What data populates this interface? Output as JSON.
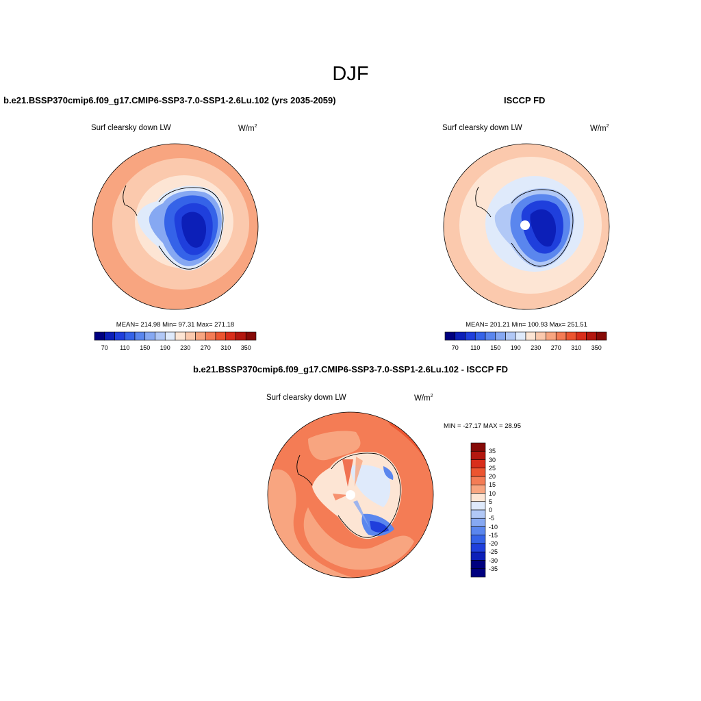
{
  "figure": {
    "season": "DJF",
    "units_base": "W/m",
    "units_exp": "2",
    "variable": "Surf clearsky down LW"
  },
  "panels": [
    {
      "id": "model",
      "title": "b.e21.BSSP370cmip6.f09_g17.CMIP6-SSP3-7.0-SSP1-2.6Lu.102 (yrs 2035-2059)",
      "variable": "Surf clearsky down LW",
      "stats": "MEAN= 214.98  Min=  97.31  Max= 271.18"
    },
    {
      "id": "obs",
      "title": "ISCCP FD",
      "variable": "Surf clearsky down LW",
      "stats": "MEAN= 201.21  Min= 100.93  Max= 251.51"
    },
    {
      "id": "diff",
      "title": "b.e21.BSSP370cmip6.f09_g17.CMIP6-SSP3-7.0-SSP1-2.6Lu.102 - ISCCP FD",
      "variable": "Surf clearsky down LW",
      "stats": "MIN = -27.17 MAX =  28.95"
    }
  ],
  "colorbar_abs": {
    "colors": [
      "#00007f",
      "#0c1fb8",
      "#1f3fdc",
      "#3563e8",
      "#5a86ee",
      "#86a8f2",
      "#b1c8f6",
      "#dfeafb",
      "#fde5d4",
      "#fbc9ad",
      "#f8a580",
      "#f47c55",
      "#ec5530",
      "#d92e1b",
      "#b3170f",
      "#860a07"
    ],
    "labels": [
      "70",
      "110",
      "150",
      "190",
      "230",
      "270",
      "310",
      "350"
    ]
  },
  "colorbar_diff": {
    "colors": [
      "#860a07",
      "#b3170f",
      "#d92e1b",
      "#ec5530",
      "#f47c55",
      "#f8a580",
      "#fde5d4",
      "#dfeafb",
      "#b1c8f6",
      "#86a8f2",
      "#5a86ee",
      "#3563e8",
      "#1f3fdc",
      "#0c1fb8",
      "#00007f"
    ],
    "labels": [
      "35",
      "30",
      "25",
      "20",
      "15",
      "10",
      "5",
      "0",
      "-5",
      "-10",
      "-15",
      "-20",
      "-25",
      "-30",
      "-35"
    ]
  },
  "chart_data": [
    {
      "type": "heatmap",
      "projection": "south-polar-stereographic",
      "title": "b.e21.BSSP370cmip6.f09_g17.CMIP6-SSP3-7.0-SSP1-2.6Lu.102 (yrs 2035-2059)",
      "variable": "Surf clearsky down LW",
      "units": "W/m2",
      "mean": 214.98,
      "min": 97.31,
      "max": 271.18,
      "contour_levels": [
        70,
        90,
        110,
        130,
        150,
        170,
        190,
        210,
        230,
        250,
        270,
        290,
        310,
        330,
        350
      ]
    },
    {
      "type": "heatmap",
      "projection": "south-polar-stereographic",
      "title": "ISCCP FD",
      "variable": "Surf clearsky down LW",
      "units": "W/m2",
      "mean": 201.21,
      "min": 100.93,
      "max": 251.51,
      "contour_levels": [
        70,
        90,
        110,
        130,
        150,
        170,
        190,
        210,
        230,
        250,
        270,
        290,
        310,
        330,
        350
      ]
    },
    {
      "type": "heatmap",
      "projection": "south-polar-stereographic",
      "title": "b.e21.BSSP370cmip6.f09_g17.CMIP6-SSP3-7.0-SSP1-2.6Lu.102 - ISCCP FD",
      "variable": "Surf clearsky down LW",
      "units": "W/m2",
      "min": -27.17,
      "max": 28.95,
      "contour_levels": [
        -35,
        -30,
        -25,
        -20,
        -15,
        -10,
        -5,
        0,
        5,
        10,
        15,
        20,
        25,
        30,
        35
      ]
    }
  ]
}
